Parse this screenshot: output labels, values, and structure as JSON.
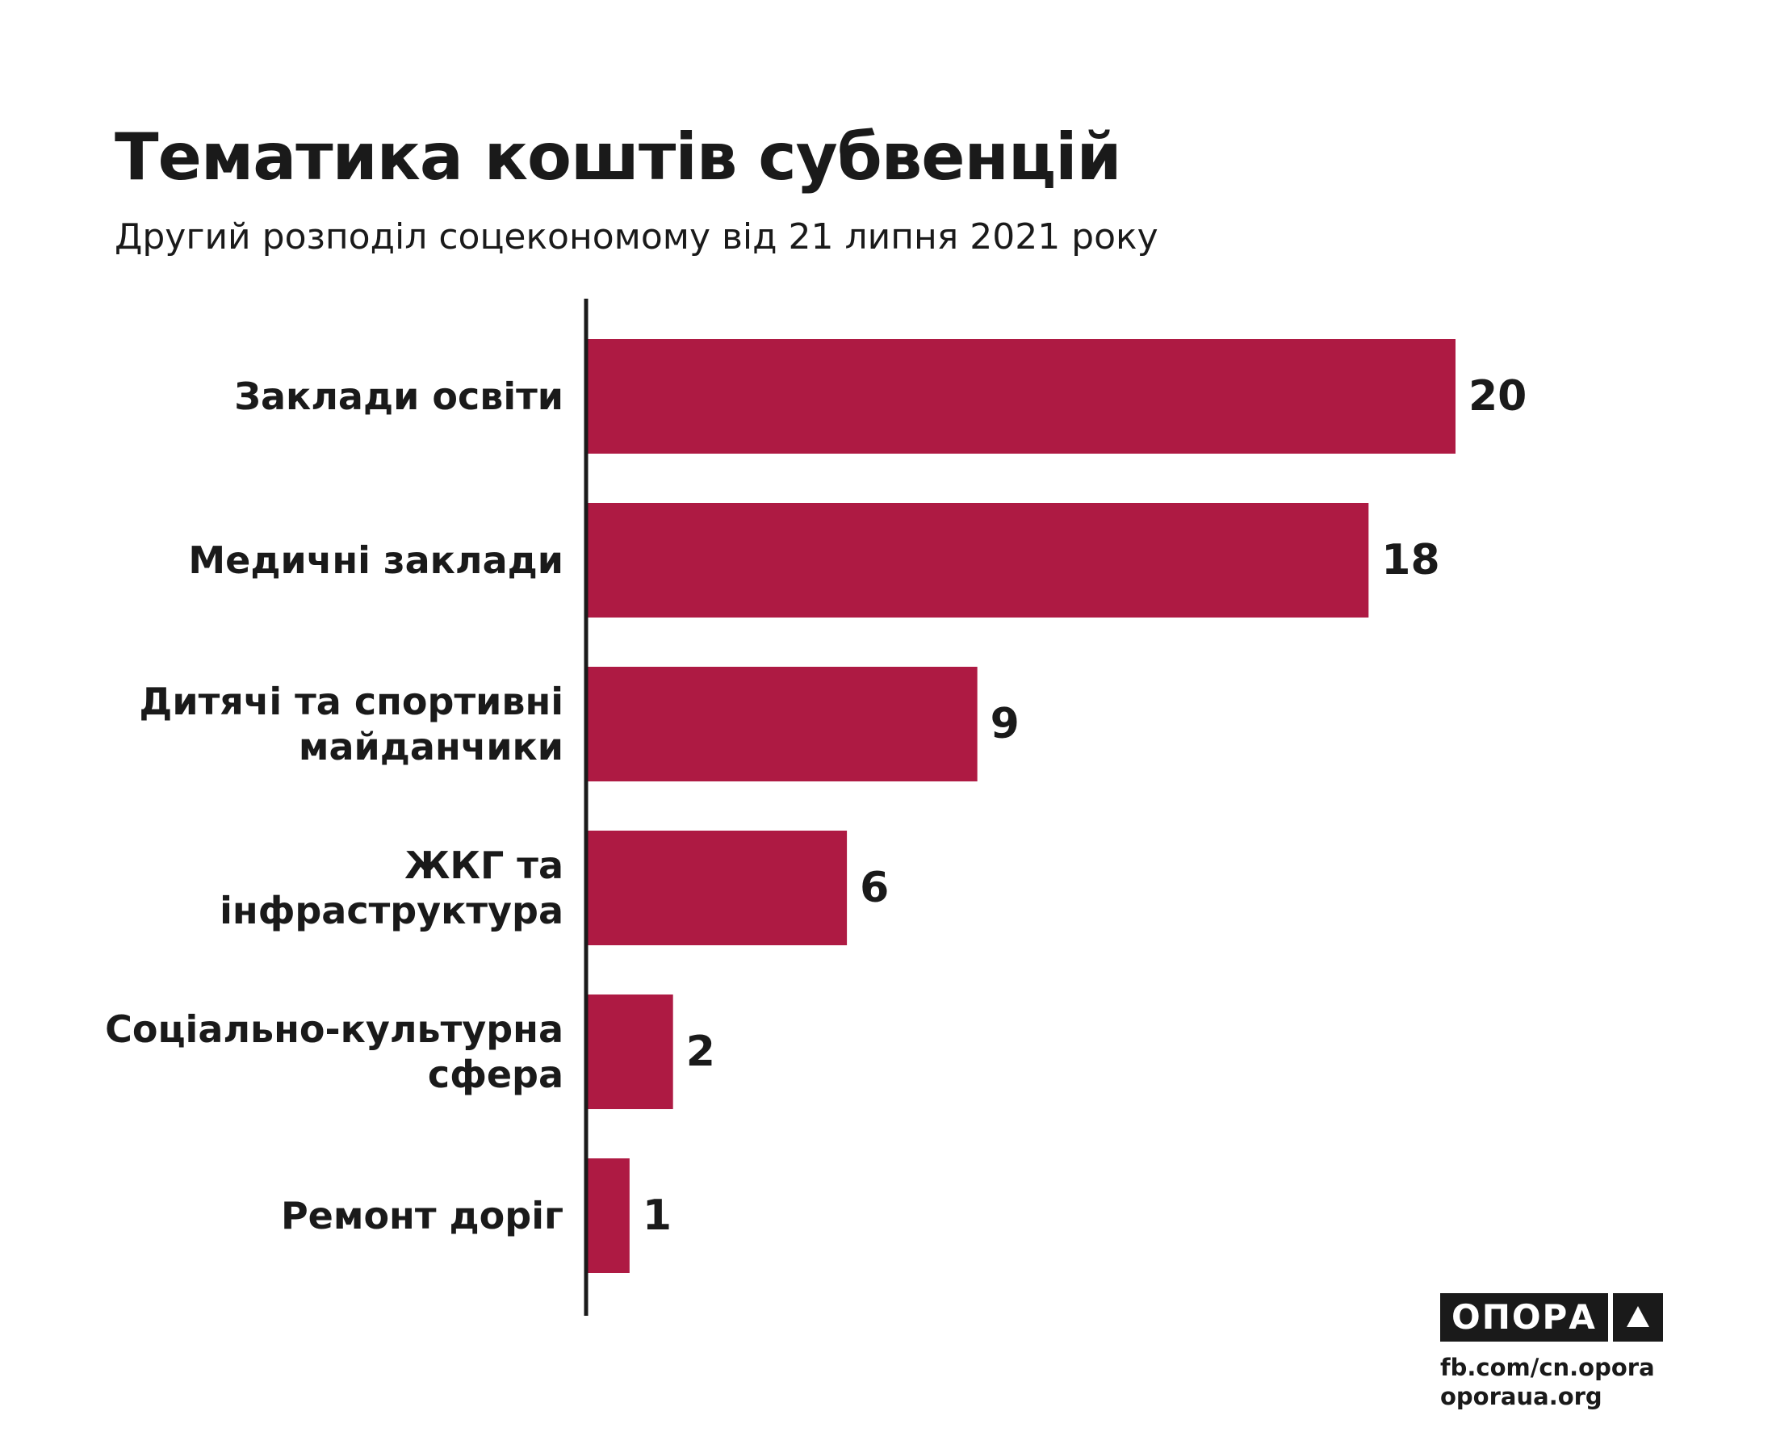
{
  "header": {
    "title": "Тематика коштів субвенцій",
    "subtitle": "Другий розподіл соцекономому від 21 липня 2021 року"
  },
  "chart_data": {
    "type": "bar",
    "orientation": "horizontal",
    "title": "Тематика коштів субвенцій",
    "subtitle": "Другий розподіл соцекономому від 21 липня 2021 року",
    "xlabel": "",
    "ylabel": "",
    "categories": [
      [
        "Заклади освіти"
      ],
      [
        "Медичні заклади"
      ],
      [
        "Дитячі та спортивні",
        "майданчики"
      ],
      [
        "ЖКГ та",
        "інфраструктура"
      ],
      [
        "Соціально-культурна",
        "сфера"
      ],
      [
        "Ремонт доріг"
      ]
    ],
    "values": [
      20,
      18,
      9,
      6,
      2,
      1
    ],
    "xlim": [
      0,
      20
    ],
    "grid": false,
    "legend": "none",
    "bar_color": "#ae1a43"
  },
  "branding": {
    "logo_text": "ОПОРА",
    "logo_icon": "triangle-icon",
    "link_facebook": "fb.com/cn.opora",
    "link_site": "oporaua.org"
  }
}
